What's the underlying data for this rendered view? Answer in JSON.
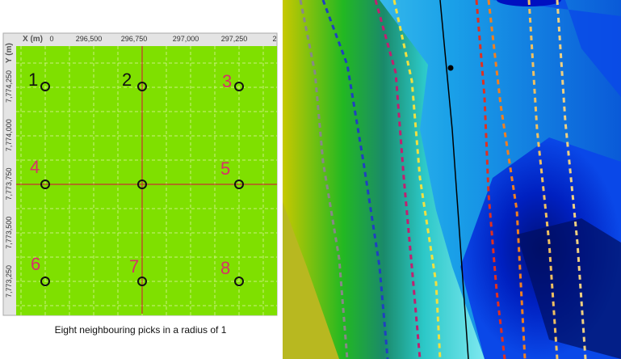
{
  "map": {
    "x_axis_label": "X (m)",
    "x_ticks": [
      "0",
      "296,500",
      "296,750",
      "297,000",
      "297,250",
      "2"
    ],
    "y_axis_label": "Y (m)",
    "y_ticks": [
      "7,774,250",
      "7,774,000",
      "7,773,750",
      "7,773,500",
      "7,773,250"
    ],
    "pick_labels": [
      "1",
      "2",
      "3",
      "4",
      "5",
      "6",
      "7",
      "8"
    ]
  },
  "caption": "Eight neighbouring picks in a radius of 1"
}
